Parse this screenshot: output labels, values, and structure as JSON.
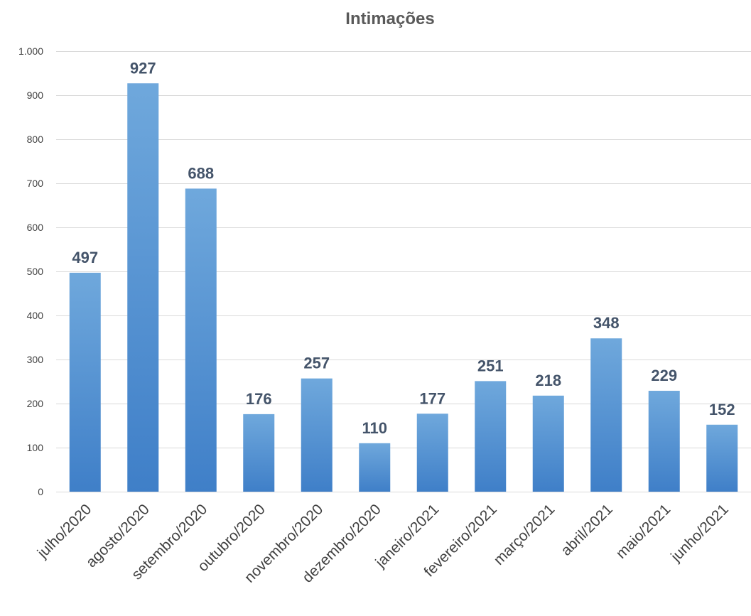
{
  "chart_data": {
    "type": "bar",
    "title": "Intimações",
    "xlabel": "",
    "ylabel": "",
    "categories": [
      "julho/2020",
      "agosto/2020",
      "setembro/2020",
      "outubro/2020",
      "novembro/2020",
      "dezembro/2020",
      "janeiro/2021",
      "fevereiro/2021",
      "março/2021",
      "abril/2021",
      "maio/2021",
      "junho/2021"
    ],
    "values": [
      497,
      927,
      688,
      176,
      257,
      110,
      177,
      251,
      218,
      348,
      229,
      152
    ],
    "data_labels": [
      "497",
      "927",
      "688",
      "176",
      "257",
      "110",
      "177",
      "251",
      "218",
      "348",
      "229",
      "152"
    ],
    "ylim": [
      0,
      1000
    ],
    "yticks": [
      0,
      100,
      200,
      300,
      400,
      500,
      600,
      700,
      800,
      900,
      1000
    ],
    "ytick_labels": [
      "0",
      "100",
      "200",
      "300",
      "400",
      "500",
      "600",
      "700",
      "800",
      "900",
      "1.000"
    ],
    "grid": true,
    "bar_color": "#5b9bd5",
    "bar_color_light": "#6fa8dc",
    "bar_color_dark": "#3f7fc8",
    "label_color": "#44546A"
  }
}
